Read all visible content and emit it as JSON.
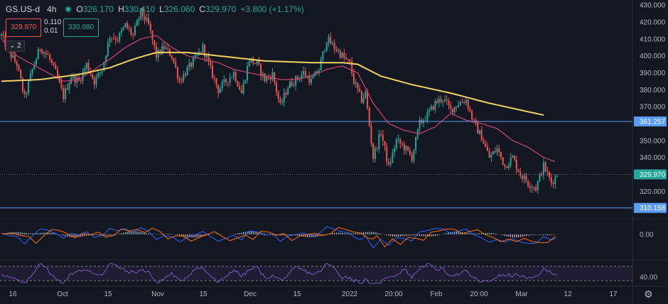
{
  "header": {
    "symbol": "GS.US-d",
    "timeframe": "4h",
    "open_label": "O",
    "open": "326.170",
    "high_label": "H",
    "high": "330.410",
    "low_label": "L",
    "low": "326.060",
    "close_label": "C",
    "close": "329.970",
    "change": "+3.800 (+1.17%)"
  },
  "quote": {
    "bid": "329.970",
    "ask": "330.080",
    "spread_top": "0.110",
    "spread_bottom": "0.01"
  },
  "indicator_toggle": "⌄ 2",
  "colors": {
    "background": "#131722",
    "up": "#26a69a",
    "down": "#ef5350",
    "ma_long": "#f0d060",
    "ma_short": "#d0456f",
    "hline": "#5b9cf6",
    "rsi": "#7e57c2"
  },
  "chart_data": {
    "type": "candlestick",
    "timeframe": "4h",
    "price_axis": {
      "range": [
        305,
        433
      ],
      "ticks": [
        310,
        320,
        330,
        340,
        350,
        360,
        370,
        380,
        390,
        400,
        410,
        420,
        430
      ]
    },
    "x_ticks": [
      "16",
      "Oct",
      "15",
      "Nov",
      "15",
      "Dec",
      "15",
      "2022",
      "20:00",
      "Feb",
      "20:00",
      "Mar",
      "12",
      "17"
    ],
    "horizontal_lines": [
      {
        "value": 361.257,
        "label": "361.257",
        "style": "solid"
      },
      {
        "value": 310.158,
        "label": "310.158",
        "style": "solid"
      },
      {
        "value": 329.97,
        "label": "329.970",
        "style": "dotted"
      }
    ],
    "price_path": [
      [
        0,
        412
      ],
      [
        4,
        402
      ],
      [
        8,
        395
      ],
      [
        12,
        375
      ],
      [
        16,
        392
      ],
      [
        20,
        405
      ],
      [
        24,
        400
      ],
      [
        28,
        390
      ],
      [
        32,
        376
      ],
      [
        36,
        388
      ],
      [
        40,
        385
      ],
      [
        44,
        395
      ],
      [
        48,
        385
      ],
      [
        52,
        392
      ],
      [
        56,
        412
      ],
      [
        60,
        410
      ],
      [
        64,
        418
      ],
      [
        68,
        412
      ],
      [
        72,
        426
      ],
      [
        76,
        418
      ],
      [
        80,
        400
      ],
      [
        84,
        405
      ],
      [
        88,
        400
      ],
      [
        92,
        385
      ],
      [
        96,
        392
      ],
      [
        100,
        398
      ],
      [
        104,
        405
      ],
      [
        108,
        392
      ],
      [
        112,
        380
      ],
      [
        116,
        385
      ],
      [
        120,
        390
      ],
      [
        124,
        378
      ],
      [
        128,
        398
      ],
      [
        132,
        395
      ],
      [
        136,
        386
      ],
      [
        140,
        389
      ],
      [
        144,
        370
      ],
      [
        148,
        382
      ],
      [
        152,
        386
      ],
      [
        156,
        390
      ],
      [
        160,
        385
      ],
      [
        164,
        392
      ],
      [
        168,
        410
      ],
      [
        172,
        405
      ],
      [
        176,
        400
      ],
      [
        180,
        395
      ],
      [
        182,
        385
      ],
      [
        186,
        374
      ],
      [
        188,
        378
      ],
      [
        192,
        340
      ],
      [
        196,
        355
      ],
      [
        200,
        334
      ],
      [
        204,
        350
      ],
      [
        208,
        346
      ],
      [
        212,
        340
      ],
      [
        216,
        360
      ],
      [
        220,
        365
      ],
      [
        224,
        372
      ],
      [
        228,
        375
      ],
      [
        232,
        368
      ],
      [
        236,
        372
      ],
      [
        240,
        374
      ],
      [
        244,
        360
      ],
      [
        248,
        352
      ],
      [
        252,
        340
      ],
      [
        256,
        345
      ],
      [
        260,
        335
      ],
      [
        264,
        340
      ],
      [
        268,
        330
      ],
      [
        272,
        325
      ],
      [
        276,
        322
      ],
      [
        280,
        335
      ],
      [
        284,
        325
      ],
      [
        287,
        330
      ]
    ],
    "ma_long_path": [
      [
        0,
        385
      ],
      [
        20,
        386
      ],
      [
        40,
        389
      ],
      [
        56,
        393
      ],
      [
        68,
        398
      ],
      [
        80,
        402
      ],
      [
        96,
        402
      ],
      [
        112,
        400
      ],
      [
        136,
        397
      ],
      [
        160,
        396
      ],
      [
        176,
        396
      ],
      [
        184,
        395
      ],
      [
        196,
        388
      ],
      [
        212,
        383
      ],
      [
        232,
        378
      ],
      [
        252,
        372
      ],
      [
        268,
        368
      ],
      [
        280,
        365
      ]
    ],
    "ma_short_path": [
      [
        0,
        410
      ],
      [
        8,
        400
      ],
      [
        16,
        395
      ],
      [
        24,
        390
      ],
      [
        32,
        385
      ],
      [
        40,
        386
      ],
      [
        48,
        392
      ],
      [
        56,
        398
      ],
      [
        64,
        405
      ],
      [
        72,
        410
      ],
      [
        80,
        412
      ],
      [
        88,
        405
      ],
      [
        96,
        400
      ],
      [
        104,
        398
      ],
      [
        112,
        396
      ],
      [
        120,
        392
      ],
      [
        128,
        390
      ],
      [
        136,
        388
      ],
      [
        144,
        386
      ],
      [
        152,
        386
      ],
      [
        160,
        388
      ],
      [
        168,
        392
      ],
      [
        176,
        394
      ],
      [
        184,
        390
      ],
      [
        192,
        372
      ],
      [
        200,
        360
      ],
      [
        208,
        356
      ],
      [
        216,
        354
      ],
      [
        224,
        358
      ],
      [
        232,
        366
      ],
      [
        240,
        362
      ],
      [
        248,
        360
      ],
      [
        256,
        357
      ],
      [
        264,
        350
      ],
      [
        272,
        346
      ],
      [
        280,
        340
      ],
      [
        287,
        337
      ]
    ],
    "macd": {
      "zero_label": "0.00",
      "range": [
        -1,
        1
      ]
    },
    "rsi": {
      "range": [
        20,
        80
      ],
      "levels": [
        70,
        30
      ],
      "tick": "40.00"
    }
  }
}
